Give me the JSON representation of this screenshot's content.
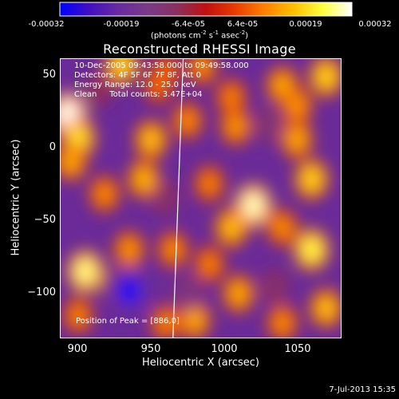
{
  "colorbar": {
    "ticks": [
      "-0.00032",
      "-0.00019",
      "-6.4e-05",
      "6.4e-05",
      "0.00019",
      "0.00032"
    ],
    "unit_parts": [
      "(photons cm",
      "-2",
      " s",
      "-1",
      " asec",
      "-2",
      ")"
    ],
    "stops": [
      "#0000ff",
      "#4010c0",
      "#6a2aa0",
      "#7a3a88",
      "#8a3060",
      "#c01010",
      "#e83c00",
      "#ff8000",
      "#ffc000",
      "#ffff40",
      "#ffffff"
    ]
  },
  "title": "Reconstructed RHESSI Image",
  "info": {
    "line1": "10-Dec-2005 09:43:58.000 to 09:49:58.000",
    "line2": "Detectors: 4F 5F 6F 7F 8F, Att 0",
    "line3": "Energy Range: 12.0 - 25.0 keV",
    "line4": "Clean     Total counts: 3.47E+04"
  },
  "peak": "Position of Peak = [886,0]",
  "axes": {
    "xlabel": "Heliocentric X (arcsec)",
    "ylabel": "Heliocentric Y (arcsec)",
    "xticks": [
      "900",
      "950",
      "1000",
      "1050"
    ],
    "yticks": [
      "50",
      "0",
      "−50",
      "−100"
    ]
  },
  "timestamp": "7-Jul-2013 15:35",
  "chart_data": {
    "type": "heatmap",
    "title": "Reconstructed RHESSI Image",
    "xlabel": "Heliocentric X (arcsec)",
    "ylabel": "Heliocentric Y (arcsec)",
    "xlim": [
      888,
      1080
    ],
    "ylim": [
      -130,
      60
    ],
    "clim": [
      -0.00032,
      0.00032
    ],
    "colormap": "blue-purple-red-yellow-white",
    "peak": [
      886,
      0
    ],
    "limb_line": {
      "x": [
        965,
        972
      ],
      "y": [
        -130,
        60
      ]
    },
    "blobs": [
      {
        "x": 893,
        "y": 22,
        "v": 0.00032
      },
      {
        "x": 900,
        "y": 6,
        "v": 0.00024
      },
      {
        "x": 895,
        "y": -10,
        "v": 0.00018
      },
      {
        "x": 930,
        "y": 56,
        "v": 0.00022
      },
      {
        "x": 960,
        "y": 52,
        "v": 0.00012
      },
      {
        "x": 985,
        "y": 55,
        "v": 0.00015
      },
      {
        "x": 955,
        "y": 42,
        "v": 0.00012
      },
      {
        "x": 1005,
        "y": 34,
        "v": 0.00014
      },
      {
        "x": 1008,
        "y": 14,
        "v": 0.00016
      },
      {
        "x": 1040,
        "y": 42,
        "v": 0.00018
      },
      {
        "x": 1070,
        "y": 48,
        "v": 0.00022
      },
      {
        "x": 1050,
        "y": 28,
        "v": 0.00016
      },
      {
        "x": 950,
        "y": 5,
        "v": 0.0002
      },
      {
        "x": 975,
        "y": 18,
        "v": 0.00015
      },
      {
        "x": 1050,
        "y": 5,
        "v": 0.00018
      },
      {
        "x": 918,
        "y": -32,
        "v": 0.00015
      },
      {
        "x": 945,
        "y": -22,
        "v": 0.00019
      },
      {
        "x": 990,
        "y": -25,
        "v": 0.00014
      },
      {
        "x": 1020,
        "y": -40,
        "v": 0.0003
      },
      {
        "x": 1005,
        "y": -55,
        "v": 0.0002
      },
      {
        "x": 1060,
        "y": -22,
        "v": 0.00022
      },
      {
        "x": 1040,
        "y": -55,
        "v": 0.00015
      },
      {
        "x": 1060,
        "y": -70,
        "v": 0.00026
      },
      {
        "x": 1070,
        "y": -110,
        "v": 0.0002
      },
      {
        "x": 1040,
        "y": -120,
        "v": 0.00015
      },
      {
        "x": 1010,
        "y": -100,
        "v": 0.00018
      },
      {
        "x": 990,
        "y": -80,
        "v": 0.00014
      },
      {
        "x": 980,
        "y": -118,
        "v": 0.00018
      },
      {
        "x": 960,
        "y": -120,
        "v": 0.00014
      },
      {
        "x": 965,
        "y": -70,
        "v": 0.00015
      },
      {
        "x": 935,
        "y": -70,
        "v": 0.00016
      },
      {
        "x": 905,
        "y": -85,
        "v": 0.00028
      },
      {
        "x": 900,
        "y": -115,
        "v": 0.00014
      },
      {
        "x": 925,
        "y": -95,
        "v": -0.00012
      },
      {
        "x": 935,
        "y": -98,
        "v": -0.00032
      },
      {
        "x": 975,
        "y": -100,
        "v": -0.00014
      },
      {
        "x": 960,
        "y": -35,
        "v": -0.0001
      },
      {
        "x": 1030,
        "y": 15,
        "v": -0.00012
      },
      {
        "x": 1035,
        "y": -95,
        "v": -0.0001
      },
      {
        "x": 915,
        "y": 40,
        "v": -8e-05
      }
    ]
  }
}
